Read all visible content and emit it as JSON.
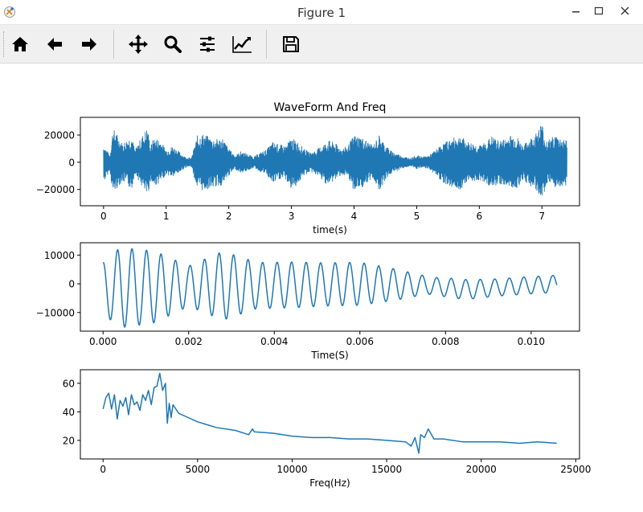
{
  "window": {
    "title": "Figure 1"
  },
  "toolbar": {
    "buttons": [
      {
        "name": "home-icon"
      },
      {
        "name": "back-arrow-icon"
      },
      {
        "name": "forward-arrow-icon"
      },
      {
        "name": "pan-icon"
      },
      {
        "name": "zoom-icon"
      },
      {
        "name": "configure-subplots-icon"
      },
      {
        "name": "edit-axis-icon"
      },
      {
        "name": "save-icon"
      }
    ]
  },
  "colors": {
    "line": "#1f77b4",
    "axes": "#000000",
    "toolbar_bg": "#f0f0f0"
  },
  "chart_data": [
    {
      "type": "line",
      "title": "WaveForm And Freq",
      "xlabel": "time(s)",
      "ylabel": "",
      "xlim": [
        -0.37,
        7.6
      ],
      "ylim": [
        -32000,
        33000
      ],
      "xticks": [
        0,
        1,
        2,
        3,
        4,
        5,
        6,
        7
      ],
      "xtick_labels": [
        "0",
        "1",
        "2",
        "3",
        "4",
        "5",
        "6",
        "7"
      ],
      "yticks": [
        20000,
        0,
        -20000
      ],
      "ytick_labels": [
        "20000",
        "0",
        "−20000"
      ],
      "x_range": [
        0,
        7.4
      ],
      "envelope": {
        "x": [
          0,
          0.1,
          0.15,
          0.2,
          0.3,
          0.45,
          0.5,
          0.6,
          0.7,
          0.75,
          0.8,
          0.9,
          1.0,
          1.1,
          1.2,
          1.3,
          1.4,
          1.5,
          1.6,
          1.7,
          1.8,
          1.9,
          2.0,
          2.1,
          2.2,
          2.3,
          2.4,
          2.5,
          2.6,
          2.7,
          2.8,
          2.9,
          3.0,
          3.1,
          3.2,
          3.3,
          3.4,
          3.5,
          3.6,
          3.7,
          3.8,
          3.9,
          4.0,
          4.1,
          4.2,
          4.3,
          4.4,
          4.5,
          4.6,
          4.7,
          4.8,
          4.9,
          5.0,
          5.1,
          5.2,
          5.3,
          5.4,
          5.5,
          5.6,
          5.7,
          5.8,
          5.9,
          6.0,
          6.1,
          6.2,
          6.3,
          6.4,
          6.5,
          6.6,
          6.7,
          6.8,
          6.9,
          7.0,
          7.05,
          7.1,
          7.2,
          7.3,
          7.35
        ],
        "upper": [
          13000,
          5000,
          25000,
          22000,
          14000,
          20000,
          9000,
          18000,
          26000,
          12000,
          18000,
          17000,
          9000,
          12000,
          8000,
          4000,
          3000,
          20000,
          21000,
          18000,
          17000,
          18000,
          10000,
          5000,
          8000,
          6000,
          4000,
          7000,
          9000,
          15000,
          13000,
          12000,
          18000,
          15000,
          10000,
          7000,
          9000,
          13000,
          16000,
          14000,
          10000,
          12000,
          20000,
          19000,
          16000,
          12000,
          20000,
          13000,
          8000,
          6000,
          4000,
          3000,
          5000,
          4000,
          5000,
          9000,
          13000,
          16000,
          18000,
          20000,
          15000,
          14000,
          12000,
          15000,
          19000,
          16000,
          17000,
          20000,
          19000,
          12000,
          17000,
          21000,
          30000,
          18000,
          16000,
          20000,
          18000,
          17000
        ],
        "lower": [
          -15000,
          -6000,
          -24000,
          -20000,
          -14000,
          -20000,
          -8000,
          -17000,
          -26000,
          -14000,
          -18000,
          -15000,
          -9000,
          -11000,
          -8000,
          -4000,
          -3000,
          -20000,
          -21000,
          -19000,
          -18000,
          -17000,
          -10000,
          -5000,
          -8000,
          -6000,
          -4000,
          -7000,
          -9000,
          -16000,
          -13000,
          -12000,
          -20000,
          -16000,
          -10000,
          -7000,
          -9000,
          -14000,
          -17000,
          -13000,
          -9000,
          -12000,
          -21000,
          -19000,
          -17000,
          -11000,
          -21000,
          -13000,
          -8000,
          -6000,
          -4000,
          -3000,
          -5000,
          -4000,
          -5000,
          -9000,
          -14000,
          -17000,
          -19000,
          -20000,
          -14000,
          -14000,
          -13000,
          -15000,
          -19000,
          -16000,
          -17000,
          -19000,
          -19000,
          -13000,
          -17000,
          -21000,
          -27000,
          -20000,
          -16000,
          -20000,
          -18000,
          -17000
        ]
      }
    },
    {
      "type": "line",
      "title": "",
      "xlabel": "Time(S)",
      "ylabel": "",
      "xlim": [
        -0.00053,
        0.01113
      ],
      "ylim": [
        -16500,
        14300
      ],
      "xticks": [
        0.0,
        0.002,
        0.004,
        0.006,
        0.008,
        0.01
      ],
      "xtick_labels": [
        "0.000",
        "0.002",
        "0.004",
        "0.006",
        "0.008",
        "0.010"
      ],
      "yticks": [
        10000,
        0,
        -10000
      ],
      "ytick_labels": [
        "10000",
        "0",
        "−10000"
      ],
      "x_range": [
        0,
        0.0106
      ],
      "signal": {
        "freq_hz": 2950,
        "phase": 1.6,
        "amp_t": [
          0,
          0.0004,
          0.0012,
          0.002,
          0.0028,
          0.0036,
          0.0044,
          0.0052,
          0.006,
          0.0068,
          0.0076,
          0.0084,
          0.0092,
          0.01,
          0.0106
        ],
        "amp": [
          9000,
          14000,
          12500,
          7000,
          12000,
          8000,
          8000,
          7500,
          7500,
          5500,
          3000,
          3500,
          3000,
          3000,
          3000
        ],
        "offset_t": [
          0,
          0.002,
          0.004,
          0.006,
          0.0075,
          0.0085,
          0.01,
          0.0106
        ],
        "offset": [
          -1500,
          -800,
          -500,
          0,
          -500,
          -2000,
          -500,
          0
        ]
      }
    },
    {
      "type": "line",
      "title": "",
      "xlabel": "Freq(Hz)",
      "ylabel": "",
      "xlim": [
        -1200,
        25200
      ],
      "ylim": [
        7000,
        69500
      ],
      "xticks": [
        0,
        5000,
        10000,
        15000,
        20000,
        25000
      ],
      "xtick_labels": [
        "0",
        "5000",
        "10000",
        "15000",
        "20000",
        "25000"
      ],
      "yticks": [
        60,
        40,
        20
      ],
      "ytick_labels": [
        "60",
        "40",
        "20"
      ],
      "x": [
        0,
        150,
        300,
        450,
        600,
        750,
        900,
        1050,
        1200,
        1350,
        1500,
        1650,
        1800,
        1950,
        2100,
        2250,
        2400,
        2550,
        2700,
        2850,
        3000,
        3150,
        3300,
        3400,
        3500,
        3600,
        3700,
        3850,
        4000,
        4500,
        5000,
        6000,
        7000,
        7700,
        7900,
        8000,
        9000,
        10000,
        11000,
        12000,
        13000,
        14000,
        15000,
        16000,
        16300,
        16500,
        16700,
        16800,
        17000,
        17200,
        17500,
        18000,
        19000,
        20000,
        21000,
        22000,
        23000,
        24000
      ],
      "y": [
        42,
        50,
        53,
        42,
        52,
        35,
        48,
        44,
        50,
        38,
        52,
        45,
        47,
        41,
        52,
        48,
        55,
        45,
        57,
        58,
        67,
        55,
        60,
        32,
        46,
        36,
        45,
        42,
        39,
        36,
        33,
        29,
        27,
        24,
        28,
        26,
        25,
        23,
        22,
        22,
        21,
        21,
        20,
        19,
        16,
        22,
        11,
        24,
        22,
        28,
        21,
        21,
        19,
        19,
        19,
        18,
        19,
        18
      ]
    }
  ]
}
